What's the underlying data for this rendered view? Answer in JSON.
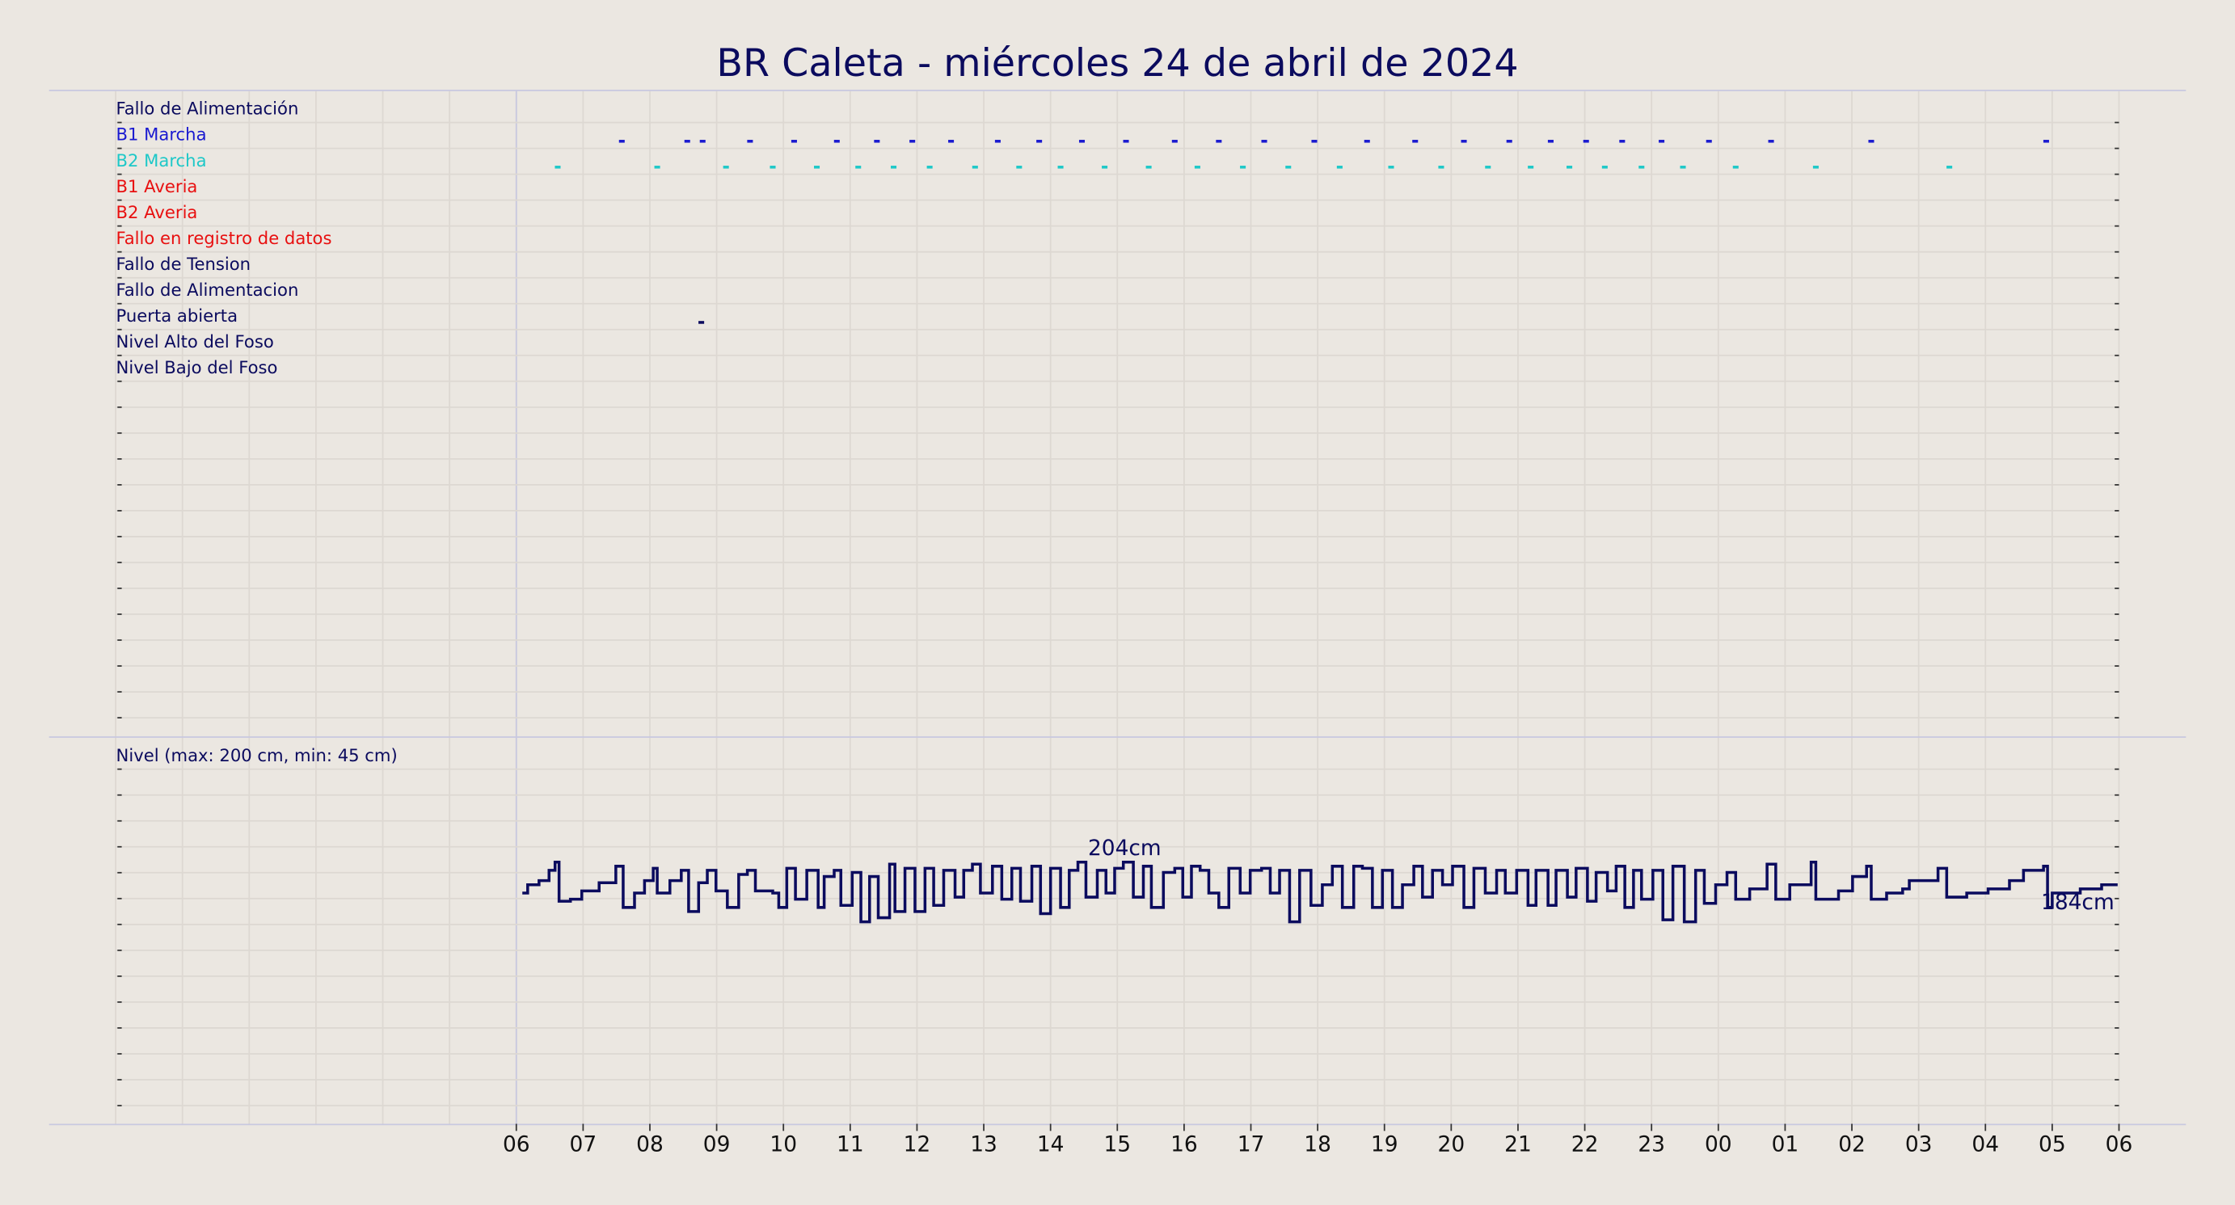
{
  "chart_data": [
    {
      "type": "event",
      "title": "BR Caleta   -   miércoles 24 de abril de 2024",
      "xlim": [
        0,
        24
      ],
      "rows": [
        {
          "name": "Fallo de Alimentación",
          "color": "#0b0b5e",
          "x": []
        },
        {
          "name": "B1 Marcha",
          "color": "#1a1ad0",
          "x": [
            1.58,
            2.56,
            2.79,
            3.5,
            4.16,
            4.8,
            5.4,
            5.93,
            6.51,
            7.21,
            7.83,
            8.47,
            9.13,
            9.86,
            10.52,
            11.2,
            11.95,
            12.74,
            13.46,
            14.19,
            14.87,
            15.49,
            16.02,
            16.56,
            17.15,
            17.86,
            18.79,
            20.29,
            22.91
          ]
        },
        {
          "name": "B2 Marcha",
          "color": "#1ec8c8",
          "x": [
            0.62,
            2.11,
            3.14,
            3.84,
            4.5,
            5.12,
            5.65,
            6.19,
            6.87,
            7.53,
            8.15,
            8.81,
            9.47,
            10.2,
            10.88,
            11.56,
            12.33,
            13.1,
            13.85,
            14.55,
            15.19,
            15.77,
            16.3,
            16.85,
            17.47,
            18.26,
            19.46,
            21.46
          ]
        },
        {
          "name": "B1 Averia",
          "color": "#e81010",
          "x": []
        },
        {
          "name": "B2 Averia",
          "color": "#e81010",
          "x": []
        },
        {
          "name": "Fallo en registro de datos",
          "color": "#e81010",
          "x": []
        },
        {
          "name": "Fallo de Tension",
          "color": "#0b0b5e",
          "x": []
        },
        {
          "name": "Fallo de Alimentacion",
          "color": "#0b0b5e",
          "x": []
        },
        {
          "name": "Puerta abierta",
          "color": "#0b0b5e",
          "x": [
            2.77
          ]
        },
        {
          "name": "Nivel Alto del Foso",
          "color": "#0b0b5e",
          "x": []
        },
        {
          "name": "Nivel Bajo del Foso",
          "color": "#0b0b5e",
          "x": []
        }
      ]
    },
    {
      "type": "line",
      "ylabel": "Nivel (max: 200 cm, min: 45 cm)",
      "color": "#0b0b5e",
      "xlim": [
        0,
        24
      ],
      "ylim": [
        78,
        266
      ],
      "xticks": [
        {
          "value": 0,
          "label": "06"
        },
        {
          "value": 1,
          "label": "07"
        },
        {
          "value": 2,
          "label": "08"
        },
        {
          "value": 3,
          "label": "09"
        },
        {
          "value": 4,
          "label": "10"
        },
        {
          "value": 5,
          "label": "11"
        },
        {
          "value": 6,
          "label": "12"
        },
        {
          "value": 7,
          "label": "13"
        },
        {
          "value": 8,
          "label": "14"
        },
        {
          "value": 9,
          "label": "15"
        },
        {
          "value": 10,
          "label": "16"
        },
        {
          "value": 11,
          "label": "17"
        },
        {
          "value": 12,
          "label": "18"
        },
        {
          "value": 13,
          "label": "19"
        },
        {
          "value": 14,
          "label": "20"
        },
        {
          "value": 15,
          "label": "21"
        },
        {
          "value": 16,
          "label": "22"
        },
        {
          "value": 17,
          "label": "23"
        },
        {
          "value": 18,
          "label": "00"
        },
        {
          "value": 19,
          "label": "01"
        },
        {
          "value": 20,
          "label": "02"
        },
        {
          "value": 21,
          "label": "03"
        },
        {
          "value": 22,
          "label": "04"
        },
        {
          "value": 23,
          "label": "05"
        },
        {
          "value": 24,
          "label": "06"
        }
      ],
      "annotations": [
        "204cm",
        "184cm"
      ],
      "x": [
        0.09,
        0.17,
        0.34,
        0.49,
        0.58,
        0.64,
        0.81,
        0.98,
        1.24,
        1.49,
        1.6,
        1.77,
        1.92,
        2.05,
        2.11,
        2.3,
        2.47,
        2.58,
        2.73,
        2.86,
        2.99,
        3.16,
        3.33,
        3.46,
        3.58,
        3.84,
        3.93,
        4.05,
        4.18,
        4.35,
        4.52,
        4.61,
        4.76,
        4.86,
        5.03,
        5.16,
        5.29,
        5.42,
        5.59,
        5.67,
        5.82,
        5.97,
        6.12,
        6.25,
        6.4,
        6.57,
        6.7,
        6.83,
        6.95,
        7.13,
        7.27,
        7.42,
        7.55,
        7.72,
        7.85,
        8.0,
        8.15,
        8.28,
        8.41,
        8.53,
        8.7,
        8.83,
        8.96,
        9.09,
        9.24,
        9.39,
        9.51,
        9.69,
        9.86,
        9.98,
        10.11,
        10.24,
        10.37,
        10.52,
        10.67,
        10.84,
        10.99,
        11.16,
        11.29,
        11.43,
        11.58,
        11.73,
        11.9,
        12.07,
        12.22,
        12.37,
        12.54,
        12.67,
        12.82,
        12.97,
        13.12,
        13.27,
        13.44,
        13.57,
        13.72,
        13.87,
        14.02,
        14.19,
        14.34,
        14.51,
        14.68,
        14.81,
        14.98,
        15.15,
        15.27,
        15.45,
        15.57,
        15.74,
        15.87,
        16.04,
        16.17,
        16.34,
        16.47,
        16.6,
        16.73,
        16.85,
        17.02,
        17.17,
        17.32,
        17.49,
        17.66,
        17.79,
        17.96,
        18.13,
        18.26,
        18.47,
        18.73,
        18.86,
        19.07,
        19.39,
        19.46,
        19.8,
        20.01,
        20.22,
        20.29,
        20.52,
        20.76,
        20.86,
        21.29,
        21.42,
        21.72,
        22.04,
        22.36,
        22.57,
        22.87,
        22.93,
        23.0,
        23.42,
        23.74,
        23.98
      ],
      "values": [
        190,
        194,
        196,
        201,
        205,
        186,
        187,
        191,
        195,
        203,
        183,
        190,
        196,
        202,
        190,
        196,
        201,
        181,
        195,
        201,
        191,
        183,
        199,
        201,
        191,
        190,
        183,
        202,
        187,
        201,
        183,
        198,
        201,
        184,
        200,
        176,
        198,
        178,
        204,
        181,
        202,
        181,
        202,
        184,
        201,
        188,
        201,
        204,
        190,
        203,
        187,
        202,
        186,
        203,
        180,
        202,
        183,
        201,
        205,
        188,
        201,
        190,
        202,
        205,
        188,
        203,
        183,
        200,
        202,
        188,
        203,
        201,
        190,
        183,
        202,
        190,
        201,
        202,
        190,
        201,
        176,
        201,
        184,
        194,
        203,
        183,
        203,
        202,
        183,
        201,
        183,
        194,
        203,
        188,
        201,
        194,
        203,
        183,
        202,
        190,
        201,
        190,
        201,
        184,
        201,
        184,
        201,
        188,
        202,
        186,
        200,
        191,
        203,
        183,
        201,
        187,
        201,
        177,
        203,
        176,
        201,
        185,
        194,
        200,
        187,
        192,
        204,
        187,
        194,
        205,
        187,
        191,
        198,
        203,
        187,
        190,
        192,
        196,
        202,
        188,
        190,
        192,
        196,
        201,
        203,
        183,
        190,
        192,
        194,
        194
      ]
    }
  ]
}
